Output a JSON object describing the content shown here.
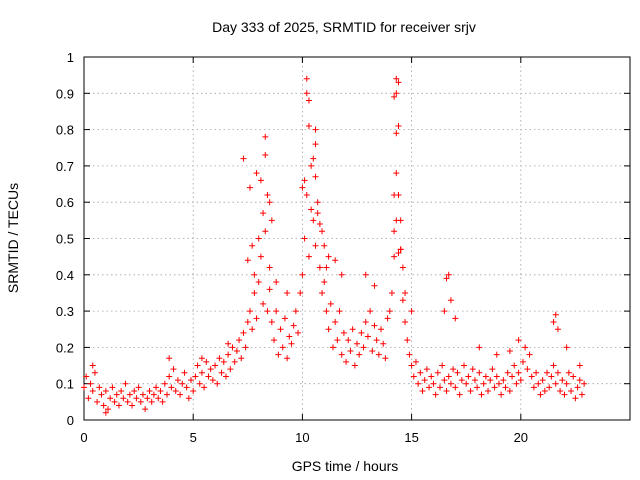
{
  "chart_data": {
    "type": "scatter",
    "title": "Day 333 of 2025, SRMTID for receiver srjv",
    "xlabel": "GPS time / hours",
    "ylabel": "SRMTID / TECUs",
    "xlim": [
      0,
      25
    ],
    "ylim": [
      0,
      1
    ],
    "x_ticks": [
      0,
      5,
      10,
      15,
      20
    ],
    "y_ticks": [
      0,
      0.1,
      0.2,
      0.3,
      0.4,
      0.5,
      0.6,
      0.7,
      0.8,
      0.9,
      1
    ],
    "x_tick_labels": [
      "0",
      "5",
      "10",
      "15",
      "20"
    ],
    "y_tick_labels": [
      "0",
      "0.1",
      "0.2",
      "0.3",
      "0.4",
      "0.5",
      "0.6",
      "0.7",
      "0.8",
      "0.9",
      "1"
    ],
    "grid": true,
    "marker": "+",
    "series": [
      {
        "name": "SRMTID",
        "color": "#ff0000",
        "points": [
          [
            0.0,
            0.09
          ],
          [
            0.1,
            0.12
          ],
          [
            0.2,
            0.06
          ],
          [
            0.3,
            0.1
          ],
          [
            0.4,
            0.08
          ],
          [
            0.5,
            0.13
          ],
          [
            0.6,
            0.05
          ],
          [
            0.7,
            0.09
          ],
          [
            0.8,
            0.07
          ],
          [
            0.9,
            0.04
          ],
          [
            1.0,
            0.08
          ],
          [
            1.1,
            0.03
          ],
          [
            1.2,
            0.06
          ],
          [
            1.3,
            0.09
          ],
          [
            1.4,
            0.05
          ],
          [
            1.5,
            0.07
          ],
          [
            1.6,
            0.04
          ],
          [
            1.7,
            0.08
          ],
          [
            1.8,
            0.06
          ],
          [
            1.9,
            0.1
          ],
          [
            2.0,
            0.05
          ],
          [
            2.1,
            0.07
          ],
          [
            2.2,
            0.04
          ],
          [
            2.3,
            0.08
          ],
          [
            2.4,
            0.06
          ],
          [
            2.5,
            0.09
          ],
          [
            2.6,
            0.05
          ],
          [
            2.7,
            0.07
          ],
          [
            2.8,
            0.03
          ],
          [
            2.9,
            0.06
          ],
          [
            3.0,
            0.08
          ],
          [
            3.1,
            0.05
          ],
          [
            3.2,
            0.07
          ],
          [
            3.3,
            0.09
          ],
          [
            3.4,
            0.06
          ],
          [
            3.5,
            0.08
          ],
          [
            3.6,
            0.05
          ],
          [
            3.7,
            0.1
          ],
          [
            3.8,
            0.07
          ],
          [
            3.9,
            0.12
          ],
          [
            4.0,
            0.09
          ],
          [
            4.1,
            0.14
          ],
          [
            4.2,
            0.08
          ],
          [
            4.3,
            0.11
          ],
          [
            4.4,
            0.07
          ],
          [
            4.5,
            0.1
          ],
          [
            4.6,
            0.13
          ],
          [
            4.7,
            0.09
          ],
          [
            4.8,
            0.06
          ],
          [
            4.9,
            0.11
          ],
          [
            5.0,
            0.08
          ],
          [
            5.1,
            0.12
          ],
          [
            5.2,
            0.15
          ],
          [
            5.3,
            0.1
          ],
          [
            5.4,
            0.13
          ],
          [
            5.5,
            0.09
          ],
          [
            5.6,
            0.16
          ],
          [
            5.7,
            0.12
          ],
          [
            5.8,
            0.14
          ],
          [
            5.9,
            0.11
          ],
          [
            6.0,
            0.15
          ],
          [
            6.1,
            0.1
          ],
          [
            6.2,
            0.17
          ],
          [
            6.3,
            0.13
          ],
          [
            6.4,
            0.16
          ],
          [
            6.5,
            0.12
          ],
          [
            6.6,
            0.18
          ],
          [
            6.7,
            0.14
          ],
          [
            6.8,
            0.2
          ],
          [
            6.9,
            0.16
          ],
          [
            7.0,
            0.19
          ],
          [
            7.1,
            0.22
          ],
          [
            7.2,
            0.17
          ],
          [
            7.3,
            0.24
          ],
          [
            7.4,
            0.2
          ],
          [
            7.5,
            0.27
          ],
          [
            7.6,
            0.3
          ],
          [
            7.7,
            0.25
          ],
          [
            7.8,
            0.35
          ],
          [
            7.9,
            0.28
          ],
          [
            8.0,
            0.38
          ],
          [
            8.1,
            0.45
          ],
          [
            8.2,
            0.32
          ],
          [
            8.3,
            0.52
          ],
          [
            8.4,
            0.3
          ],
          [
            8.5,
            0.36
          ],
          [
            8.6,
            0.27
          ],
          [
            8.7,
            0.22
          ],
          [
            8.8,
            0.3
          ],
          [
            8.9,
            0.18
          ],
          [
            9.0,
            0.25
          ],
          [
            9.1,
            0.2
          ],
          [
            9.2,
            0.28
          ],
          [
            9.3,
            0.17
          ],
          [
            9.4,
            0.23
          ],
          [
            9.5,
            0.21
          ],
          [
            9.6,
            0.26
          ],
          [
            9.7,
            0.3
          ],
          [
            9.8,
            0.24
          ],
          [
            9.9,
            0.35
          ],
          [
            10.0,
            0.4
          ],
          [
            10.1,
            0.5
          ],
          [
            10.2,
            0.62
          ],
          [
            10.3,
            0.45
          ],
          [
            10.4,
            0.7
          ],
          [
            10.5,
            0.55
          ],
          [
            10.6,
            0.48
          ],
          [
            10.7,
            0.6
          ],
          [
            10.8,
            0.42
          ],
          [
            10.9,
            0.35
          ],
          [
            11.0,
            0.38
          ],
          [
            11.1,
            0.3
          ],
          [
            11.2,
            0.25
          ],
          [
            11.3,
            0.32
          ],
          [
            11.4,
            0.2
          ],
          [
            11.5,
            0.27
          ],
          [
            11.6,
            0.22
          ],
          [
            11.7,
            0.3
          ],
          [
            11.8,
            0.18
          ],
          [
            11.9,
            0.24
          ],
          [
            12.0,
            0.16
          ],
          [
            12.1,
            0.22
          ],
          [
            12.2,
            0.19
          ],
          [
            12.3,
            0.25
          ],
          [
            12.4,
            0.15
          ],
          [
            12.5,
            0.21
          ],
          [
            12.6,
            0.18
          ],
          [
            12.7,
            0.24
          ],
          [
            12.8,
            0.2
          ],
          [
            12.9,
            0.27
          ],
          [
            13.0,
            0.23
          ],
          [
            13.1,
            0.3
          ],
          [
            13.2,
            0.19
          ],
          [
            13.3,
            0.26
          ],
          [
            13.4,
            0.22
          ],
          [
            13.5,
            0.18
          ],
          [
            13.6,
            0.25
          ],
          [
            13.7,
            0.21
          ],
          [
            13.8,
            0.17
          ],
          [
            13.9,
            0.28
          ],
          [
            14.0,
            0.3
          ],
          [
            14.1,
            0.35
          ],
          [
            14.2,
            0.45
          ],
          [
            14.3,
            0.55
          ],
          [
            14.4,
            0.62
          ],
          [
            14.5,
            0.47
          ],
          [
            14.6,
            0.33
          ],
          [
            14.7,
            0.27
          ],
          [
            14.8,
            0.22
          ],
          [
            14.9,
            0.18
          ],
          [
            15.0,
            0.15
          ],
          [
            15.1,
            0.12
          ],
          [
            15.2,
            0.16
          ],
          [
            15.3,
            0.1
          ],
          [
            15.4,
            0.13
          ],
          [
            15.5,
            0.08
          ],
          [
            15.6,
            0.11
          ],
          [
            15.7,
            0.14
          ],
          [
            15.8,
            0.09
          ],
          [
            15.9,
            0.12
          ],
          [
            16.0,
            0.1
          ],
          [
            16.1,
            0.07
          ],
          [
            16.2,
            0.13
          ],
          [
            16.3,
            0.09
          ],
          [
            16.4,
            0.15
          ],
          [
            16.5,
            0.11
          ],
          [
            16.6,
            0.08
          ],
          [
            16.7,
            0.12
          ],
          [
            16.8,
            0.1
          ],
          [
            16.9,
            0.14
          ],
          [
            17.0,
            0.09
          ],
          [
            17.1,
            0.13
          ],
          [
            17.2,
            0.07
          ],
          [
            17.3,
            0.11
          ],
          [
            17.4,
            0.15
          ],
          [
            17.5,
            0.1
          ],
          [
            17.6,
            0.12
          ],
          [
            17.7,
            0.08
          ],
          [
            17.8,
            0.14
          ],
          [
            17.9,
            0.11
          ],
          [
            18.0,
            0.09
          ],
          [
            18.1,
            0.13
          ],
          [
            18.2,
            0.07
          ],
          [
            18.3,
            0.1
          ],
          [
            18.4,
            0.12
          ],
          [
            18.5,
            0.08
          ],
          [
            18.6,
            0.11
          ],
          [
            18.7,
            0.14
          ],
          [
            18.8,
            0.09
          ],
          [
            18.9,
            0.12
          ],
          [
            19.0,
            0.1
          ],
          [
            19.1,
            0.07
          ],
          [
            19.2,
            0.11
          ],
          [
            19.3,
            0.09
          ],
          [
            19.4,
            0.13
          ],
          [
            19.5,
            0.08
          ],
          [
            19.6,
            0.12
          ],
          [
            19.7,
            0.15
          ],
          [
            19.8,
            0.1
          ],
          [
            19.9,
            0.13
          ],
          [
            20.0,
            0.11
          ],
          [
            20.1,
            0.16
          ],
          [
            20.2,
            0.2
          ],
          [
            20.3,
            0.14
          ],
          [
            20.4,
            0.18
          ],
          [
            20.5,
            0.12
          ],
          [
            20.6,
            0.09
          ],
          [
            20.7,
            0.13
          ],
          [
            20.8,
            0.1
          ],
          [
            20.9,
            0.07
          ],
          [
            21.0,
            0.11
          ],
          [
            21.1,
            0.08
          ],
          [
            21.2,
            0.13
          ],
          [
            21.3,
            0.09
          ],
          [
            21.4,
            0.12
          ],
          [
            21.5,
            0.15
          ],
          [
            21.6,
            0.1
          ],
          [
            21.7,
            0.13
          ],
          [
            21.8,
            0.08
          ],
          [
            21.9,
            0.11
          ],
          [
            22.0,
            0.07
          ],
          [
            22.1,
            0.1
          ],
          [
            22.2,
            0.13
          ],
          [
            22.3,
            0.08
          ],
          [
            22.4,
            0.12
          ],
          [
            22.5,
            0.06
          ],
          [
            22.6,
            0.09
          ],
          [
            22.7,
            0.11
          ],
          [
            22.8,
            0.07
          ],
          [
            22.9,
            0.1
          ],
          [
            7.3,
            0.72
          ],
          [
            7.6,
            0.64
          ],
          [
            7.9,
            0.68
          ],
          [
            8.1,
            0.66
          ],
          [
            8.3,
            0.78
          ],
          [
            8.3,
            0.73
          ],
          [
            8.5,
            0.6
          ],
          [
            8.4,
            0.62
          ],
          [
            8.6,
            0.55
          ],
          [
            8.2,
            0.57
          ],
          [
            7.5,
            0.44
          ],
          [
            7.7,
            0.48
          ],
          [
            8.0,
            0.5
          ],
          [
            8.5,
            0.42
          ],
          [
            7.8,
            0.4
          ],
          [
            8.8,
            0.38
          ],
          [
            9.3,
            0.35
          ],
          [
            10.2,
            0.94
          ],
          [
            10.2,
            0.9
          ],
          [
            10.3,
            0.88
          ],
          [
            10.3,
            0.81
          ],
          [
            10.6,
            0.8
          ],
          [
            10.6,
            0.76
          ],
          [
            10.5,
            0.72
          ],
          [
            10.6,
            0.67
          ],
          [
            10.1,
            0.66
          ],
          [
            10.0,
            0.64
          ],
          [
            10.4,
            0.58
          ],
          [
            10.7,
            0.57
          ],
          [
            10.8,
            0.54
          ],
          [
            10.9,
            0.52
          ],
          [
            11.0,
            0.48
          ],
          [
            11.2,
            0.45
          ],
          [
            11.5,
            0.44
          ],
          [
            11.8,
            0.4
          ],
          [
            11.1,
            0.42
          ],
          [
            14.3,
            0.94
          ],
          [
            14.4,
            0.93
          ],
          [
            14.3,
            0.9
          ],
          [
            14.2,
            0.89
          ],
          [
            14.4,
            0.81
          ],
          [
            14.3,
            0.79
          ],
          [
            14.3,
            0.68
          ],
          [
            14.2,
            0.62
          ],
          [
            14.5,
            0.55
          ],
          [
            14.2,
            0.52
          ],
          [
            14.5,
            0.47
          ],
          [
            14.4,
            0.46
          ],
          [
            14.6,
            0.42
          ],
          [
            14.7,
            0.35
          ],
          [
            15.0,
            0.3
          ],
          [
            12.9,
            0.4
          ],
          [
            13.3,
            0.37
          ],
          [
            16.7,
            0.4
          ],
          [
            16.6,
            0.39
          ],
          [
            16.8,
            0.33
          ],
          [
            16.5,
            0.3
          ],
          [
            17.0,
            0.28
          ],
          [
            18.1,
            0.2
          ],
          [
            18.9,
            0.18
          ],
          [
            19.5,
            0.19
          ],
          [
            19.9,
            0.22
          ],
          [
            21.6,
            0.29
          ],
          [
            21.5,
            0.27
          ],
          [
            21.7,
            0.25
          ],
          [
            22.1,
            0.2
          ],
          [
            22.7,
            0.15
          ],
          [
            0.4,
            0.15
          ],
          [
            1.0,
            0.02
          ],
          [
            3.9,
            0.17
          ],
          [
            5.4,
            0.17
          ],
          [
            6.6,
            0.21
          ]
        ]
      }
    ]
  }
}
